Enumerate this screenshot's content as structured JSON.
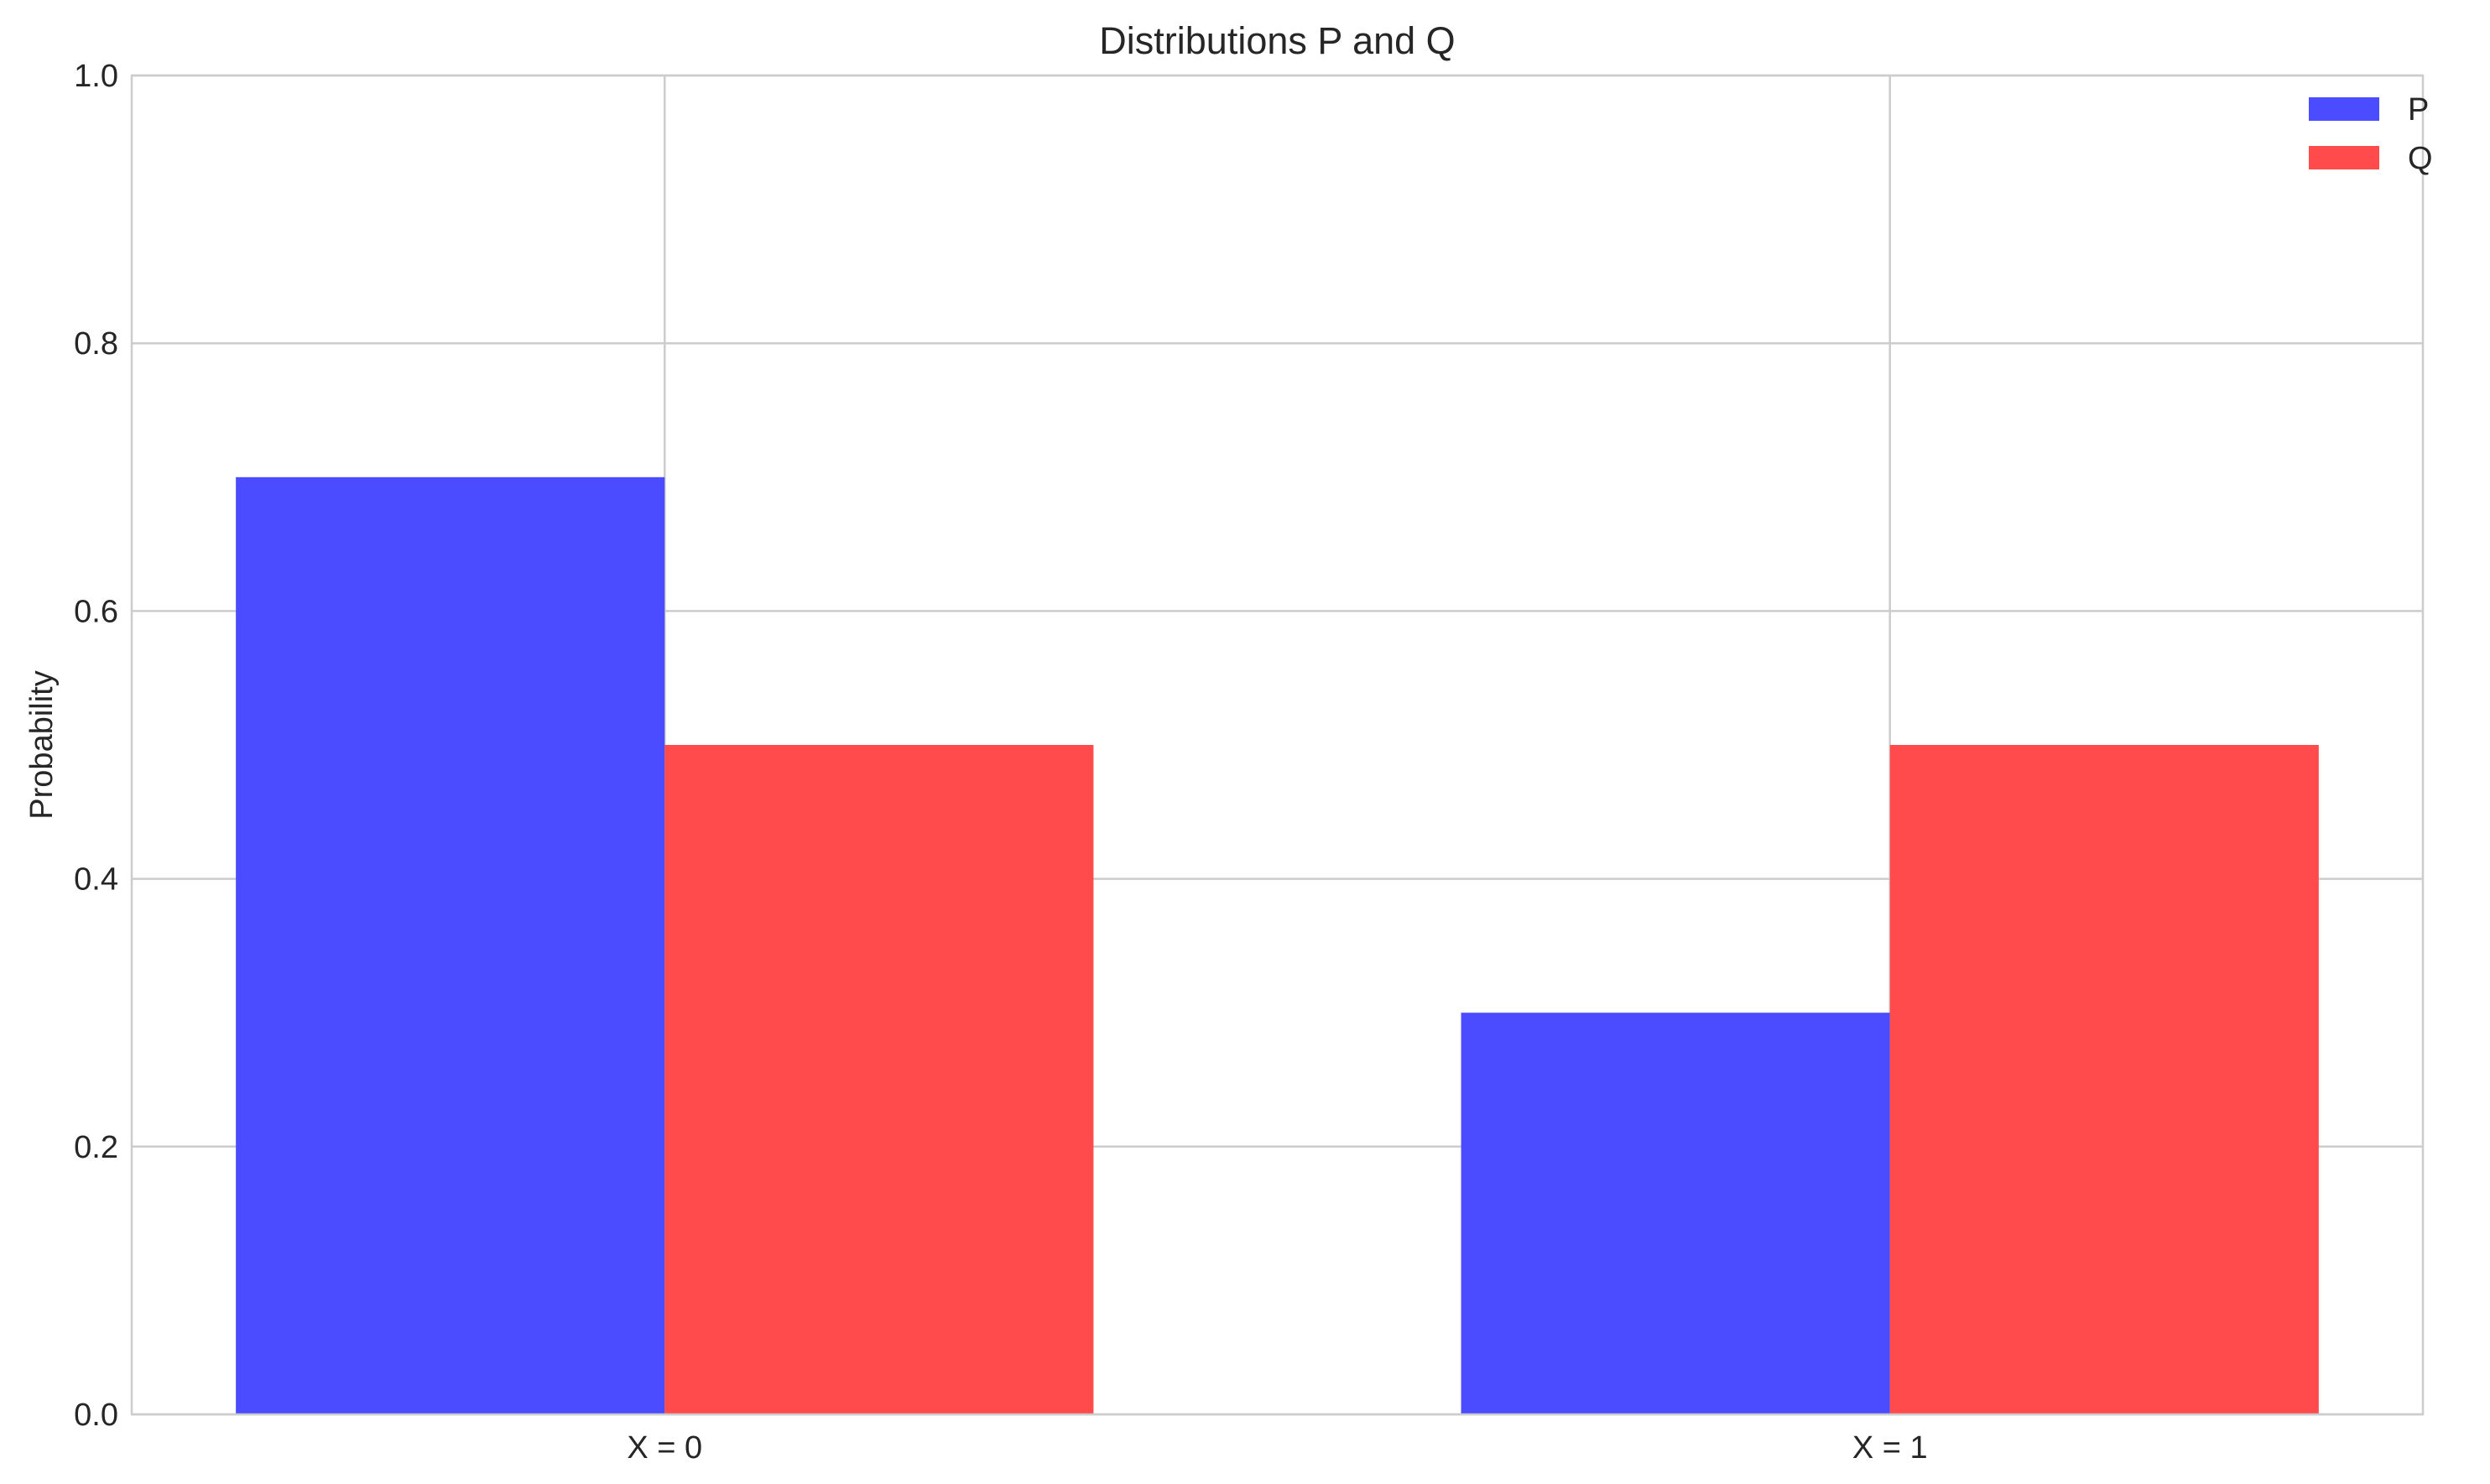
{
  "chart_data": {
    "type": "bar",
    "title": "Distributions P and Q",
    "xlabel": "",
    "ylabel": "Probability",
    "categories": [
      "X = 0",
      "X = 1"
    ],
    "series": [
      {
        "name": "P",
        "values": [
          0.7,
          0.3
        ],
        "color": "#4b4bff"
      },
      {
        "name": "Q",
        "values": [
          0.5,
          0.5
        ],
        "color": "#ff4b4b"
      }
    ],
    "ylim": [
      0,
      1.0
    ],
    "yticks": [
      0.0,
      0.2,
      0.4,
      0.6,
      0.8,
      1.0
    ],
    "ytick_labels": [
      "0.0",
      "0.2",
      "0.4",
      "0.6",
      "0.8",
      "1.0"
    ],
    "grid": true,
    "legend_position": "top-right",
    "colors": {
      "grid": "#cccccc",
      "axes_edge": "#cccccc",
      "text": "#262626"
    }
  }
}
